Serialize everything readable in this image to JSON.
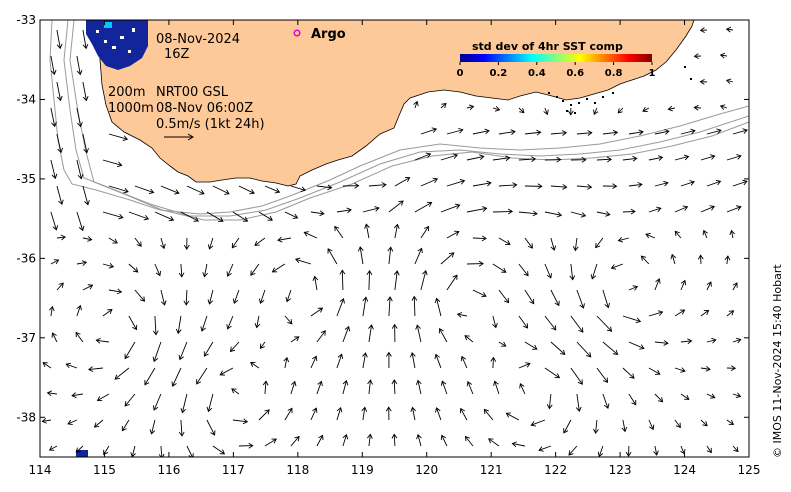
{
  "map": {
    "x_ticks": [
      "114",
      "115",
      "116",
      "117",
      "118",
      "119",
      "120",
      "121",
      "122",
      "123",
      "124",
      "125"
    ],
    "y_ticks": [
      "-33",
      "-34",
      "-35",
      "-36",
      "-37",
      "-38"
    ],
    "x_range": [
      114,
      125
    ],
    "y_range": [
      -38.5,
      -33
    ],
    "colors": {
      "land": "#fdc999",
      "frame": "#000000",
      "isobath": "#9a9a9a",
      "arrow": "#000000",
      "argo": "#e000c8",
      "sst_high_density": "#12259a"
    }
  },
  "annotations": {
    "date": "08-Nov-2024",
    "hour": "16Z",
    "depth_200": "200m",
    "depth_1000": "1000m",
    "product": "NRT00 GSL",
    "product_time": "08-Nov 06:00Z",
    "scale_label": "0.5m/s (1kt 24h)"
  },
  "legend": {
    "argo_label": "Argo",
    "colorbar_title": "std dev of 4hr SST comp",
    "colorbar_ticks": [
      "0",
      "0.2",
      "0.4",
      "0.6",
      "0.8",
      "1"
    ]
  },
  "copyright": "© IMOS 11-Nov-2024 15:40 Hobart"
}
